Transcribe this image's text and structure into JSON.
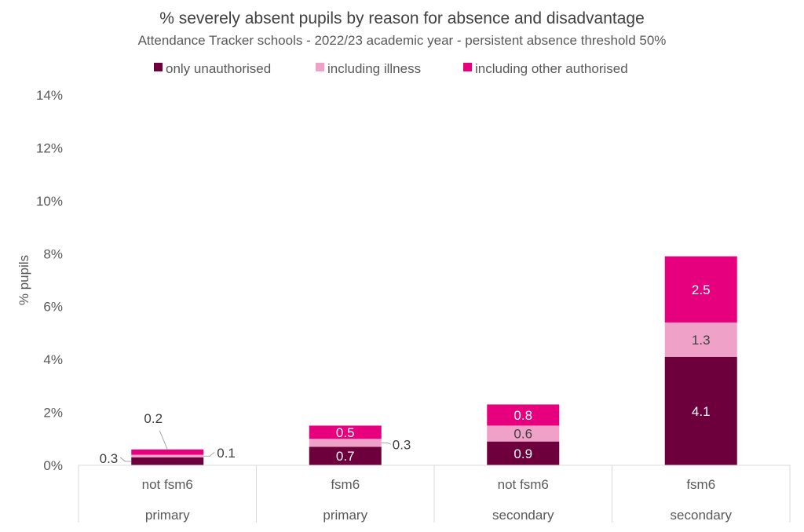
{
  "chart_data": {
    "type": "bar",
    "stacked": true,
    "title": "% severely absent pupils by reason for absence and disadvantage",
    "subtitle": "Attendance Tracker schools - 2022/23 academic year - persistent absence threshold 50%",
    "ylabel": "% pupils",
    "xlabel": "",
    "ylim": [
      0,
      14
    ],
    "yticks": [
      0,
      2,
      4,
      6,
      8,
      10,
      12,
      14
    ],
    "ytick_labels": [
      "0%",
      "2%",
      "4%",
      "6%",
      "8%",
      "10%",
      "12%",
      "14%"
    ],
    "grid": false,
    "legend_position": "top",
    "categories": [
      {
        "label": "not fsm6",
        "group": "primary"
      },
      {
        "label": "fsm6",
        "group": "primary"
      },
      {
        "label": "not fsm6",
        "group": "secondary"
      },
      {
        "label": "fsm6",
        "group": "secondary"
      }
    ],
    "series": [
      {
        "name": "only unauthorised",
        "color": "#6d003c",
        "values": [
          0.3,
          0.7,
          0.9,
          4.1
        ],
        "labels": [
          "0.3",
          "0.7",
          "0.9",
          "4.1"
        ]
      },
      {
        "name": "including illness",
        "color": "#efa1c8",
        "values": [
          0.1,
          0.3,
          0.6,
          1.3
        ],
        "labels": [
          "0.1",
          "0.3",
          "0.6",
          "1.3"
        ]
      },
      {
        "name": "including other authorised",
        "color": "#e6007e",
        "values": [
          0.2,
          0.5,
          0.8,
          2.5
        ],
        "labels": [
          "0.2",
          "0.5",
          "0.8",
          "2.5"
        ]
      }
    ]
  }
}
